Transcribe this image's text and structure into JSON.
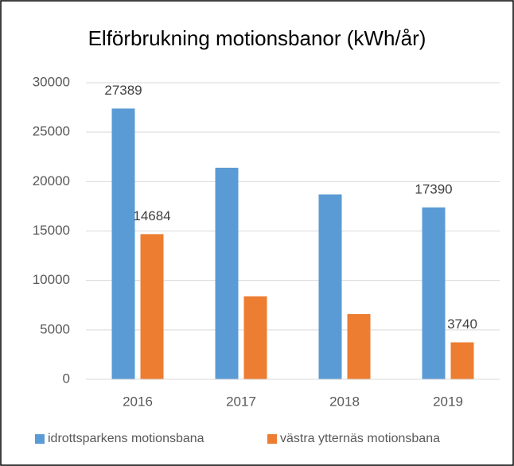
{
  "chart_data": {
    "type": "bar",
    "title": "Elförbrukning motionsbanor (kWh/år)",
    "categories": [
      "2016",
      "2017",
      "2018",
      "2019"
    ],
    "series": [
      {
        "name": "idrottsparkens motionsbana",
        "color": "#5b9bd5",
        "values": [
          27389,
          21400,
          18700,
          17390
        ],
        "value_labels": [
          "27389",
          null,
          null,
          "17390"
        ]
      },
      {
        "name": "västra ytternäs motionsbana",
        "color": "#ed7d31",
        "values": [
          14684,
          8400,
          6600,
          3740
        ],
        "value_labels": [
          "14684",
          null,
          null,
          "3740"
        ]
      }
    ],
    "ylim": [
      0,
      30000
    ],
    "yticks": [
      0,
      5000,
      10000,
      15000,
      20000,
      25000,
      30000
    ],
    "grid": true,
    "legend": "bottom"
  }
}
